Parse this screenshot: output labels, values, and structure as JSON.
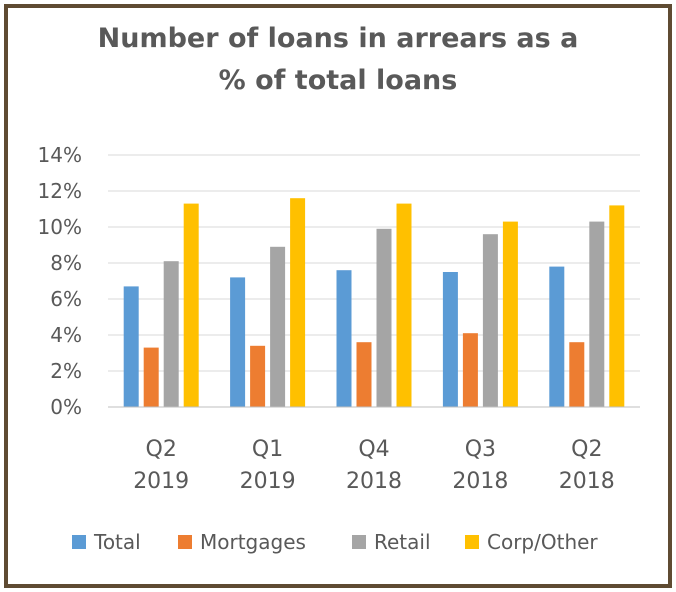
{
  "chart_data": {
    "type": "bar",
    "title": "Number of loans in arrears as a % of total loans",
    "title_lines": [
      "Number of loans in arrears as a",
      "% of total loans"
    ],
    "categories": [
      [
        "Q2",
        "2019"
      ],
      [
        "Q1",
        "2019"
      ],
      [
        "Q4",
        "2018"
      ],
      [
        "Q3",
        "2018"
      ],
      [
        "Q2",
        "2018"
      ]
    ],
    "series": [
      {
        "name": "Total",
        "color": "#5b9bd5",
        "values": [
          6.7,
          7.2,
          7.6,
          7.5,
          7.8
        ]
      },
      {
        "name": "Mortgages",
        "color": "#ed7d31",
        "values": [
          3.3,
          3.4,
          3.6,
          4.1,
          3.6
        ]
      },
      {
        "name": "Retail",
        "color": "#a5a5a5",
        "values": [
          8.1,
          8.9,
          9.9,
          9.6,
          10.3
        ]
      },
      {
        "name": "Corp/Other",
        "color": "#ffc000",
        "values": [
          11.3,
          11.6,
          11.3,
          10.3,
          11.2
        ]
      }
    ],
    "ylim": [
      0,
      14
    ],
    "ytick_step": 2,
    "ytick_suffix": "%",
    "xlabel": "",
    "ylabel": "",
    "grid": true,
    "legend_position": "bottom"
  }
}
